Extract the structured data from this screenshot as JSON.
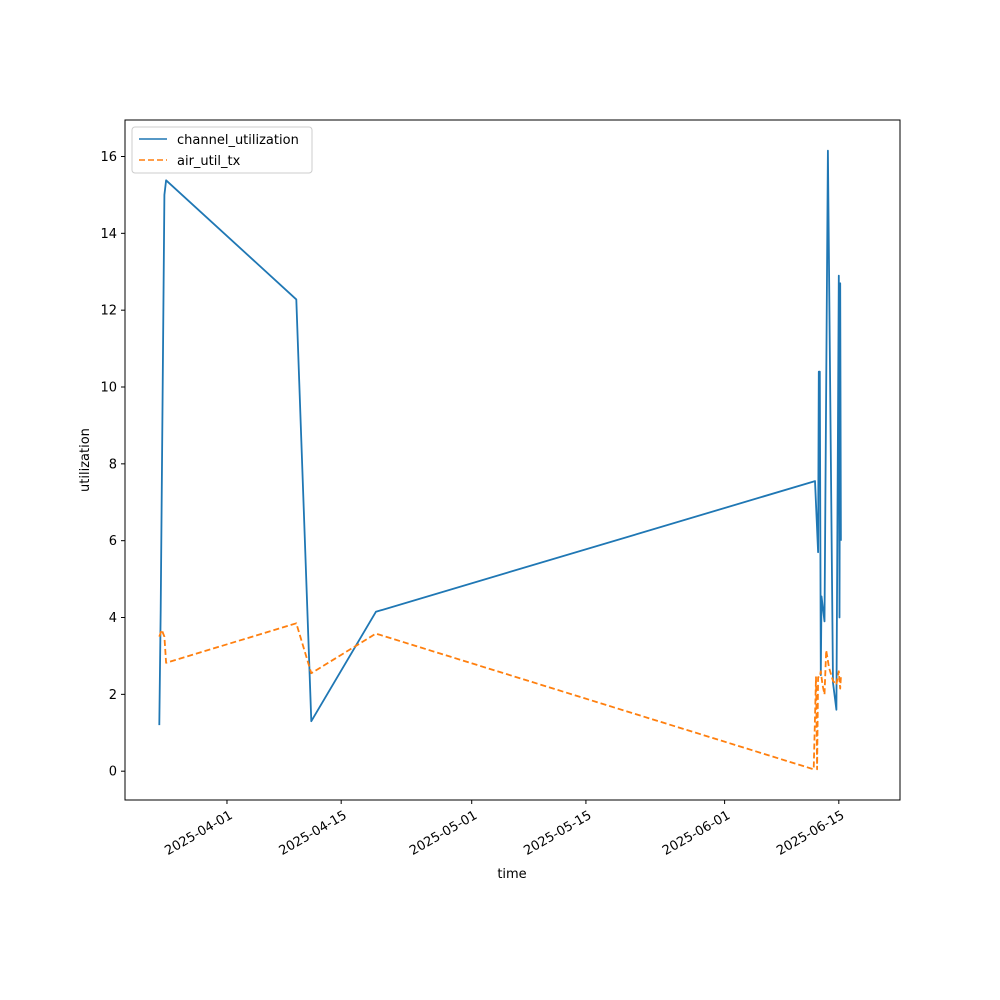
{
  "chart_data": {
    "type": "line",
    "title": "",
    "xlabel": "time",
    "ylabel": "utilization",
    "x_scale": "date",
    "xlim": [
      "2025-03-19T12:00",
      "2025-06-22T12:00"
    ],
    "ylim": [
      -0.75,
      16.95
    ],
    "x_ticks": [
      "2025-04-01",
      "2025-04-15",
      "2025-05-01",
      "2025-05-15",
      "2025-06-01",
      "2025-06-15"
    ],
    "x_tick_labels": [
      "2025-04-01",
      "2025-04-15",
      "2025-05-01",
      "2025-05-15",
      "2025-06-01",
      "2025-06-15"
    ],
    "y_ticks": [
      0,
      2,
      4,
      6,
      8,
      10,
      12,
      14,
      16
    ],
    "y_tick_labels": [
      "0",
      "2",
      "4",
      "6",
      "8",
      "10",
      "12",
      "14",
      "16"
    ],
    "grid": false,
    "legend_position": "top-left",
    "series": [
      {
        "name": "channel_utilization",
        "color": "#1f77b4",
        "dash": "solid",
        "points": [
          [
            "2025-03-23T17:00",
            1.2
          ],
          [
            "2025-03-23T21:00",
            4.2
          ],
          [
            "2025-03-24T08:00",
            15.0
          ],
          [
            "2025-03-24T13:00",
            15.38
          ],
          [
            "2025-04-09T12:00",
            12.28
          ],
          [
            "2025-04-11T08:00",
            1.3
          ],
          [
            "2025-04-19T06:00",
            4.15
          ],
          [
            "2025-06-12T02:00",
            7.55
          ],
          [
            "2025-06-12T11:00",
            5.7
          ],
          [
            "2025-06-12T13:00",
            10.4
          ],
          [
            "2025-06-12T16:00",
            10.4
          ],
          [
            "2025-06-12T19:00",
            2.5
          ],
          [
            "2025-06-12T21:00",
            4.55
          ],
          [
            "2025-06-13T06:00",
            3.9
          ],
          [
            "2025-06-13T16:00",
            16.15
          ],
          [
            "2025-06-14T07:00",
            2.3
          ],
          [
            "2025-06-14T17:00",
            1.6
          ],
          [
            "2025-06-15T00:00",
            12.9
          ],
          [
            "2025-06-15T02:00",
            4.0
          ],
          [
            "2025-06-15T04:00",
            12.7
          ],
          [
            "2025-06-15T06:00",
            6.0
          ]
        ]
      },
      {
        "name": "air_util_tx",
        "color": "#ff7f0e",
        "dash": "dashed",
        "points": [
          [
            "2025-03-23T17:00",
            3.5
          ],
          [
            "2025-03-24T00:00",
            3.68
          ],
          [
            "2025-03-24T08:00",
            3.5
          ],
          [
            "2025-03-24T13:00",
            2.82
          ],
          [
            "2025-04-09T12:00",
            3.85
          ],
          [
            "2025-04-11T08:00",
            2.55
          ],
          [
            "2025-04-19T06:00",
            3.58
          ],
          [
            "2025-06-11T22:00",
            0.05
          ],
          [
            "2025-06-12T05:00",
            2.45
          ],
          [
            "2025-06-12T08:00",
            0.05
          ],
          [
            "2025-06-12T11:00",
            2.45
          ],
          [
            "2025-06-12T16:00",
            2.45
          ],
          [
            "2025-06-12T19:00",
            2.6
          ],
          [
            "2025-06-13T00:00",
            2.25
          ],
          [
            "2025-06-13T06:00",
            2.0
          ],
          [
            "2025-06-13T11:00",
            3.15
          ],
          [
            "2025-06-13T19:00",
            2.7
          ],
          [
            "2025-06-14T07:00",
            2.35
          ],
          [
            "2025-06-14T17:00",
            2.25
          ],
          [
            "2025-06-15T00:00",
            2.6
          ],
          [
            "2025-06-15T02:00",
            2.35
          ],
          [
            "2025-06-15T04:00",
            2.15
          ],
          [
            "2025-06-15T06:00",
            2.45
          ]
        ]
      }
    ]
  }
}
